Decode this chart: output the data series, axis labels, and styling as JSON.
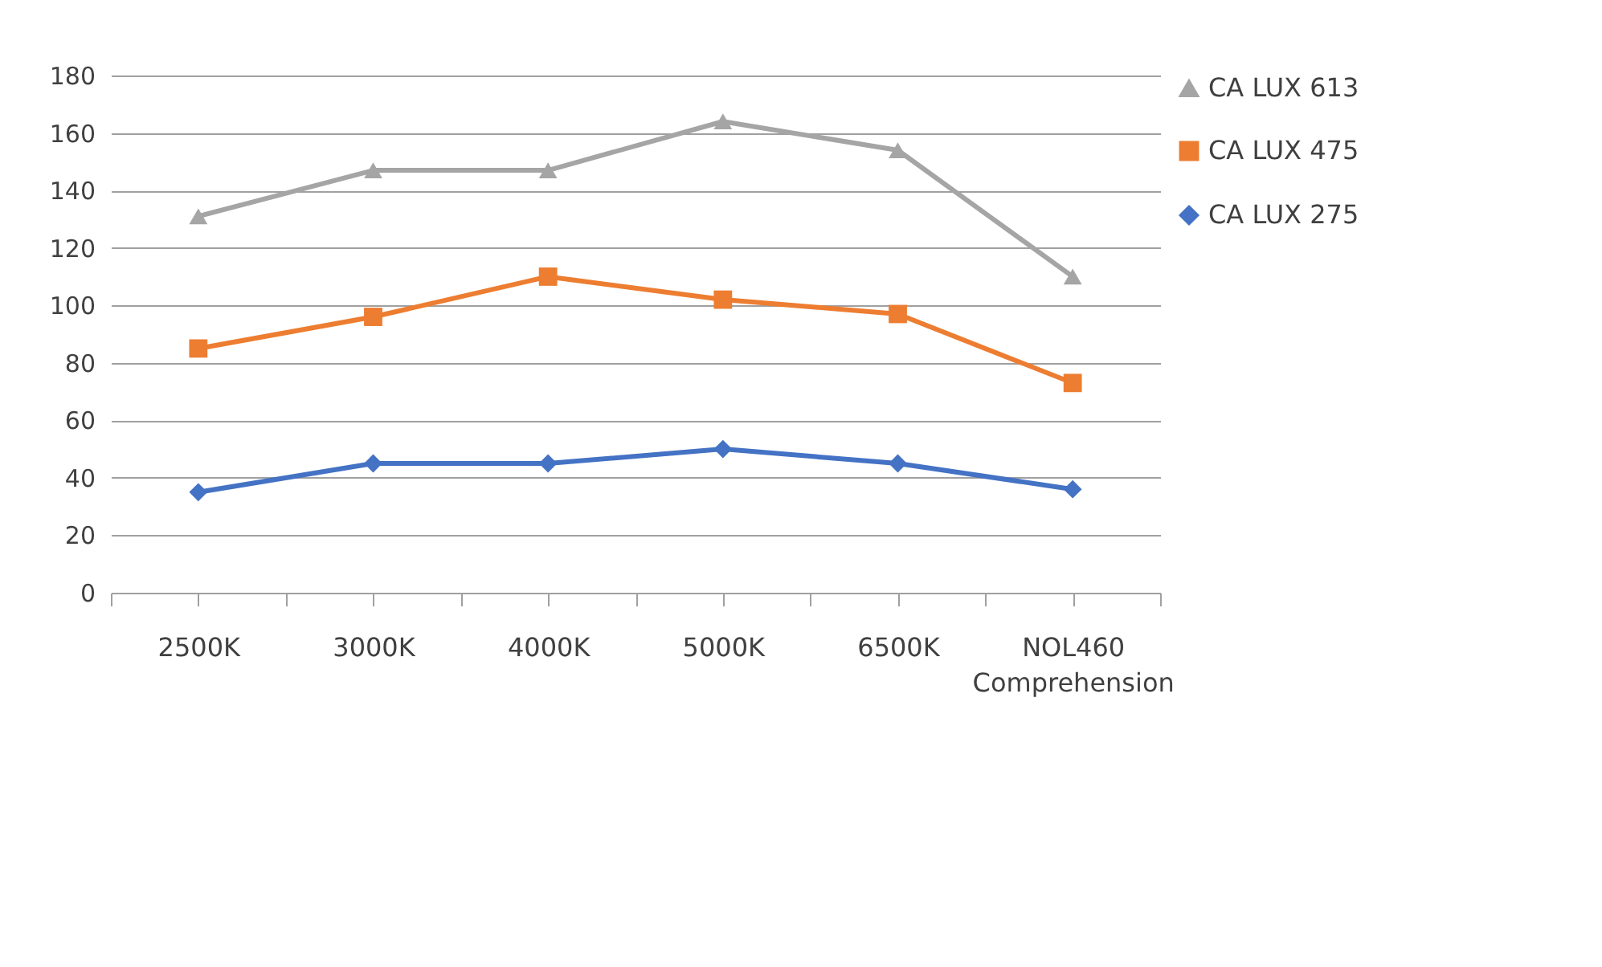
{
  "chart_data": {
    "type": "line",
    "categories": [
      "2500K",
      "3000K",
      "4000K",
      "5000K",
      "6500K",
      "NOL460 Comprehension"
    ],
    "series": [
      {
        "name": "CA LUX 613",
        "color": "#a5a5a5",
        "marker": "triangle",
        "values": [
          131,
          147,
          147,
          164,
          154,
          110
        ]
      },
      {
        "name": "CA LUX 475",
        "color": "#ed7d31",
        "marker": "square",
        "values": [
          85,
          96,
          110,
          102,
          97,
          73
        ]
      },
      {
        "name": "CA LUX 275",
        "color": "#4472c4",
        "marker": "diamond",
        "values": [
          35,
          45,
          45,
          50,
          45,
          36
        ]
      }
    ],
    "ylim": [
      0,
      180
    ],
    "yticks": [
      0,
      20,
      40,
      60,
      80,
      100,
      120,
      140,
      160,
      180
    ],
    "grid": "y",
    "legend": "right"
  }
}
